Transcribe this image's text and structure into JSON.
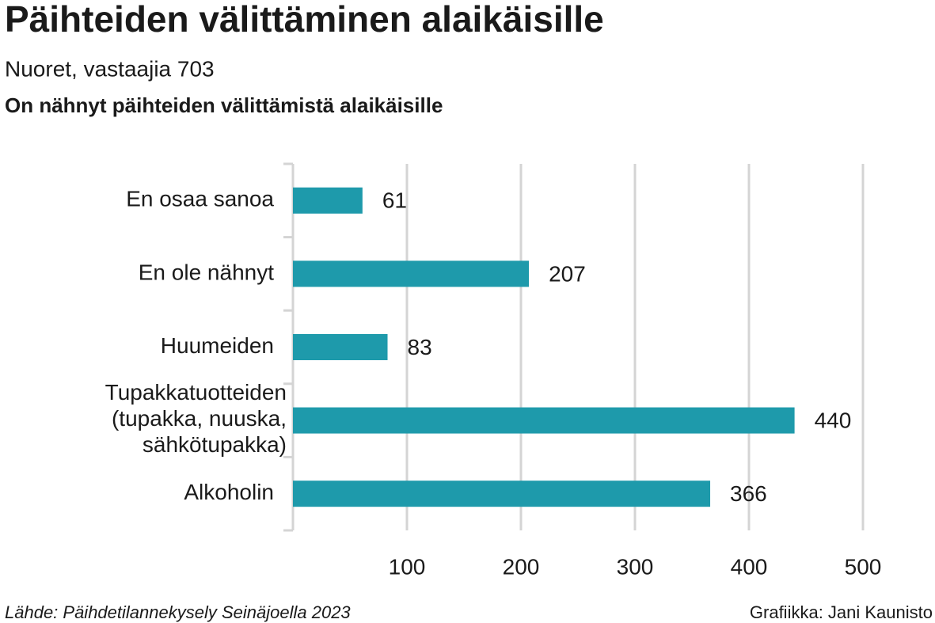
{
  "chart_data": {
    "type": "barh",
    "title": "Päihteiden välittäminen alaikäisille",
    "subtitle": "Nuoret, vastaajia 703",
    "heading": "On nähnyt päihteiden välittämistä alaikäisille",
    "categories": [
      "En osaa sanoa",
      "En ole nähnyt",
      "Huumeiden",
      "Tupakkatuotteiden\n(tupakka, nuuska,\nsähkötupakka)",
      "Alkoholin"
    ],
    "values": [
      61,
      207,
      83,
      440,
      366
    ],
    "color": "#1e9aab",
    "xlim": [
      0,
      500
    ],
    "xticks": [
      100,
      200,
      300,
      400,
      500
    ],
    "grid": true,
    "source": "Lähde: Päihdetilannekysely Seinäjoella 2023",
    "credit": "Grafiikka: Jani Kaunisto"
  }
}
